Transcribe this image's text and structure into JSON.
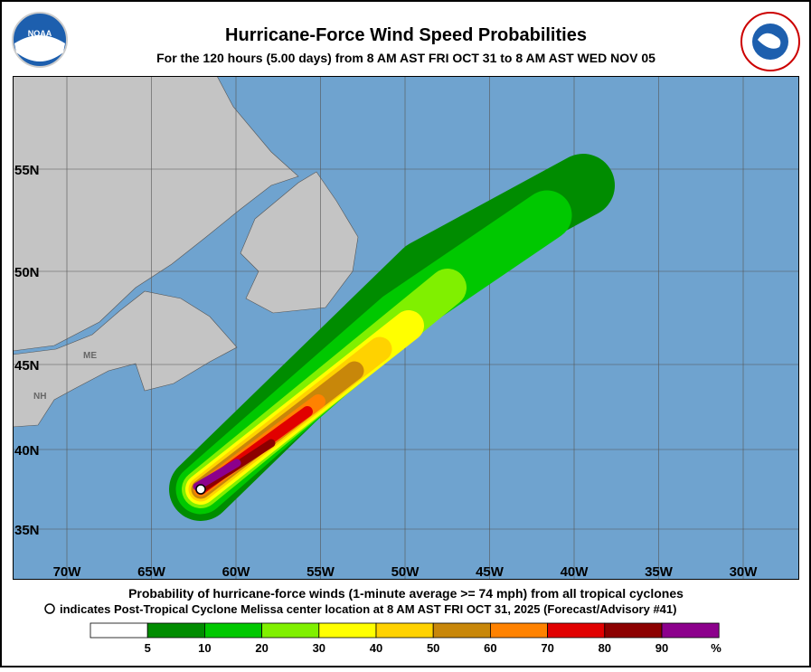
{
  "header": {
    "title": "Hurricane-Force Wind Speed Probabilities",
    "subtitle": "For the 120 hours (5.00 days) from 8 AM AST FRI OCT 31 to 8 AM AST WED NOV 05"
  },
  "map": {
    "lat_labels": [
      "55N",
      "50N",
      "45N",
      "40N",
      "35N"
    ],
    "lon_labels": [
      "70W",
      "65W",
      "60W",
      "55W",
      "50W",
      "45W",
      "40W",
      "35W",
      "30W"
    ],
    "state_labels": [
      "ME",
      "NH"
    ]
  },
  "footer": {
    "line1": "Probability of hurricane-force winds (1-minute average >= 74 mph) from all tropical cyclones",
    "line2": "indicates Post-Tropical Cyclone Melissa center location at 8 AM AST FRI OCT 31, 2025 (Forecast/Advisory #41)"
  },
  "legend": {
    "labels": [
      "5",
      "10",
      "20",
      "30",
      "40",
      "50",
      "60",
      "70",
      "80",
      "90",
      "%"
    ],
    "colors": [
      "#ffffff",
      "#008c00",
      "#00c800",
      "#80f000",
      "#ffff00",
      "#ffd200",
      "#c8870a",
      "#ff8200",
      "#e10000",
      "#8c0000",
      "#8c008c"
    ]
  }
}
